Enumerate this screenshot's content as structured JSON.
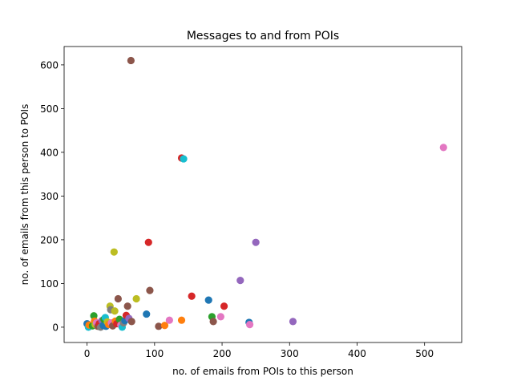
{
  "chart_data": {
    "type": "scatter",
    "title": "Messages to and from POIs",
    "xlabel": "no. of emails from POIs to this person",
    "ylabel": "no. of emails from this person to POIs",
    "xlim": [
      -34,
      555
    ],
    "ylim": [
      -35,
      642
    ],
    "x_ticks": [
      0,
      100,
      200,
      300,
      400,
      500
    ],
    "y_ticks": [
      0,
      100,
      200,
      300,
      400,
      500,
      600
    ],
    "grid": false,
    "legend": "none",
    "palette": [
      "#1f77b4",
      "#ff7f0e",
      "#2ca02c",
      "#d62728",
      "#9467bd",
      "#8c564b",
      "#e377c2",
      "#7f7f7f",
      "#bcbd22",
      "#17becf"
    ],
    "points": [
      {
        "x": 0,
        "y": 8,
        "c": 0
      },
      {
        "x": 2,
        "y": 0,
        "c": 9
      },
      {
        "x": 3,
        "y": 5,
        "c": 1
      },
      {
        "x": 8,
        "y": 3,
        "c": 2
      },
      {
        "x": 10,
        "y": 26,
        "c": 2
      },
      {
        "x": 11,
        "y": 14,
        "c": 1
      },
      {
        "x": 12,
        "y": 6,
        "c": 8
      },
      {
        "x": 14,
        "y": 10,
        "c": 6
      },
      {
        "x": 16,
        "y": 2,
        "c": 5
      },
      {
        "x": 18,
        "y": 8,
        "c": 3
      },
      {
        "x": 20,
        "y": 0,
        "c": 7
      },
      {
        "x": 22,
        "y": 15,
        "c": 4
      },
      {
        "x": 24,
        "y": 4,
        "c": 0
      },
      {
        "x": 25,
        "y": 18,
        "c": 2
      },
      {
        "x": 27,
        "y": 22,
        "c": 9
      },
      {
        "x": 28,
        "y": 2,
        "c": 0
      },
      {
        "x": 30,
        "y": 12,
        "c": 8
      },
      {
        "x": 32,
        "y": 6,
        "c": 1
      },
      {
        "x": 34,
        "y": 48,
        "c": 8
      },
      {
        "x": 35,
        "y": 40,
        "c": 7
      },
      {
        "x": 36,
        "y": 10,
        "c": 6
      },
      {
        "x": 38,
        "y": 3,
        "c": 5
      },
      {
        "x": 40,
        "y": 172,
        "c": 8
      },
      {
        "x": 41,
        "y": 37,
        "c": 8
      },
      {
        "x": 42,
        "y": 14,
        "c": 1
      },
      {
        "x": 44,
        "y": 8,
        "c": 3
      },
      {
        "x": 46,
        "y": 65,
        "c": 5
      },
      {
        "x": 48,
        "y": 18,
        "c": 2
      },
      {
        "x": 50,
        "y": 5,
        "c": 6
      },
      {
        "x": 52,
        "y": 0,
        "c": 9
      },
      {
        "x": 54,
        "y": 10,
        "c": 7
      },
      {
        "x": 56,
        "y": 15,
        "c": 0
      },
      {
        "x": 58,
        "y": 27,
        "c": 3
      },
      {
        "x": 60,
        "y": 48,
        "c": 5
      },
      {
        "x": 62,
        "y": 20,
        "c": 4
      },
      {
        "x": 65,
        "y": 610,
        "c": 5
      },
      {
        "x": 66,
        "y": 13,
        "c": 5
      },
      {
        "x": 73,
        "y": 65,
        "c": 8
      },
      {
        "x": 88,
        "y": 30,
        "c": 0
      },
      {
        "x": 91,
        "y": 194,
        "c": 3
      },
      {
        "x": 93,
        "y": 84,
        "c": 5
      },
      {
        "x": 106,
        "y": 2,
        "c": 5
      },
      {
        "x": 115,
        "y": 4,
        "c": 1
      },
      {
        "x": 122,
        "y": 16,
        "c": 6
      },
      {
        "x": 140,
        "y": 16,
        "c": 1
      },
      {
        "x": 140,
        "y": 387,
        "c": 3
      },
      {
        "x": 143,
        "y": 385,
        "c": 9
      },
      {
        "x": 155,
        "y": 71,
        "c": 3
      },
      {
        "x": 180,
        "y": 62,
        "c": 0
      },
      {
        "x": 185,
        "y": 24,
        "c": 2
      },
      {
        "x": 187,
        "y": 13,
        "c": 5
      },
      {
        "x": 198,
        "y": 24,
        "c": 6
      },
      {
        "x": 203,
        "y": 48,
        "c": 3
      },
      {
        "x": 227,
        "y": 107,
        "c": 4
      },
      {
        "x": 240,
        "y": 11,
        "c": 0
      },
      {
        "x": 241,
        "y": 6,
        "c": 6
      },
      {
        "x": 250,
        "y": 194,
        "c": 4
      },
      {
        "x": 305,
        "y": 13,
        "c": 4
      },
      {
        "x": 528,
        "y": 411,
        "c": 6
      }
    ]
  }
}
